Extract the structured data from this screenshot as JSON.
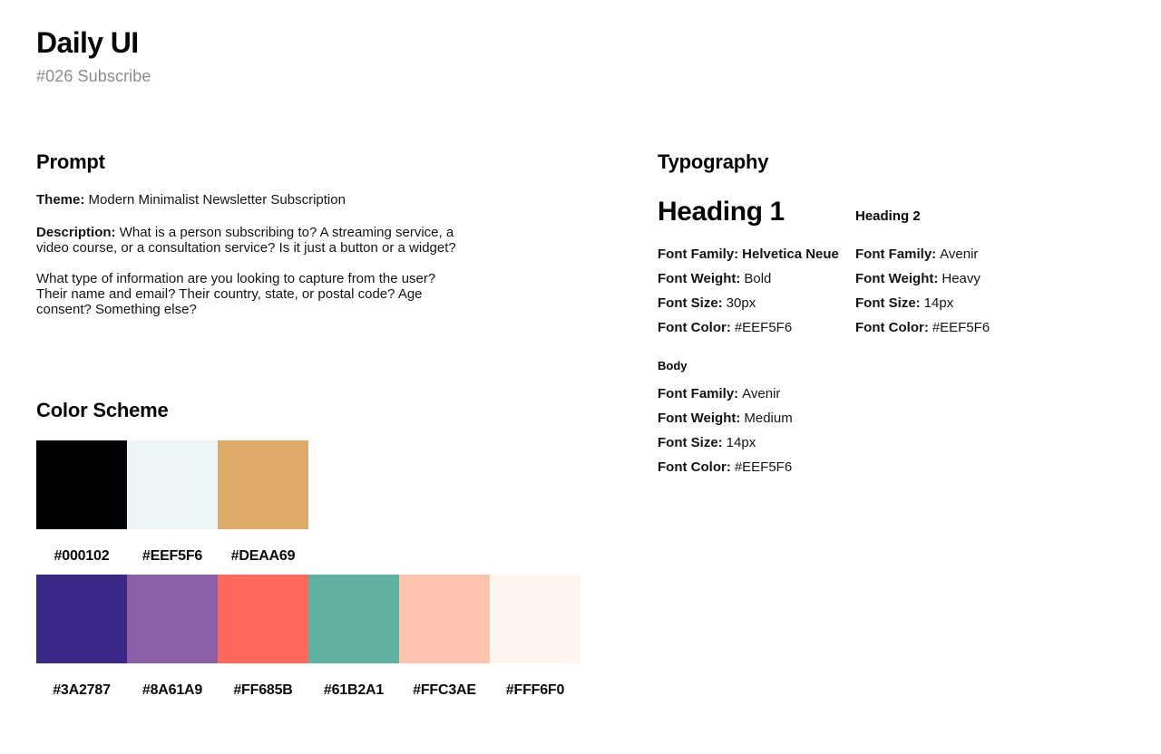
{
  "header": {
    "title": "Daily UI",
    "subtitle": "#026 Subscribe"
  },
  "prompt": {
    "heading": "Prompt",
    "theme_label": "Theme:",
    "theme_value": "Modern Minimalist Newsletter Subscription",
    "description_label": "Description:",
    "description_value": "What is a person subscribing to? A streaming service, a video course, or a consultation service? Is it just a button or a widget?",
    "questions": "What type of information are you looking to capture from the user? Their name and email? Their country, state, or postal code? Age consent? Something else?"
  },
  "color_scheme": {
    "heading": "Color Scheme",
    "rows": [
      [
        "#000102",
        "#EEF5F6",
        "#DEAA69"
      ],
      [
        "#3A2787",
        "#8A61A9",
        "#FF685B",
        "#61B2A1",
        "#FFC3AE",
        "#FFF6F0"
      ]
    ]
  },
  "typography": {
    "heading": "Typography",
    "samples": [
      {
        "title": "Heading 1",
        "specs": [
          {
            "label": "Font Family:",
            "value": "Helvetica Neue",
            "value_bold": true
          },
          {
            "label": "Font Weight:",
            "value": "Bold"
          },
          {
            "label": "Font Size:",
            "value": "30px"
          },
          {
            "label": "Font Color:",
            "value": "#EEF5F6"
          }
        ]
      },
      {
        "title": "Heading 2",
        "specs": [
          {
            "label": "Font Family:",
            "value": "Avenir"
          },
          {
            "label": "Font Weight:",
            "value": "Heavy"
          },
          {
            "label": "Font Size:",
            "value": "14px"
          },
          {
            "label": "Font Color:",
            "value": "#EEF5F6"
          }
        ]
      },
      {
        "title": "Body",
        "specs": [
          {
            "label": "Font Family:",
            "value": "Avenir"
          },
          {
            "label": "Font Weight:",
            "value": "Medium"
          },
          {
            "label": "Font Size:",
            "value": "14px"
          },
          {
            "label": "Font Color:",
            "value": "#EEF5F6"
          }
        ]
      }
    ]
  }
}
